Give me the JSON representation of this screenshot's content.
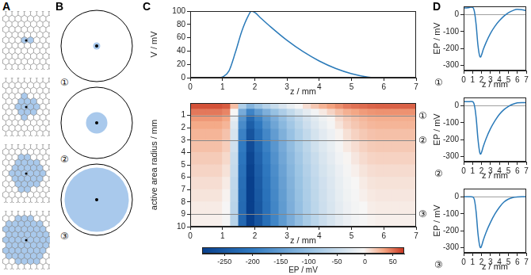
{
  "panels": [
    "A",
    "B",
    "C",
    "D"
  ],
  "chart_data": [
    {
      "type": "line",
      "x_label": "z / mm",
      "y_label": "V / mV",
      "color": "#2a7ab9",
      "x": [
        0,
        0.5,
        0.9,
        1.0,
        1.2,
        1.4,
        1.6,
        1.8,
        1.9,
        2.0,
        2.2,
        2.5,
        3.0,
        3.5,
        4.0,
        4.5,
        5.0,
        5.5,
        5.8,
        6.5,
        7.0
      ],
      "values": [
        0,
        0,
        0,
        1,
        10,
        38,
        70,
        93,
        100,
        98,
        89,
        76,
        56,
        39,
        25,
        14,
        6,
        1,
        0,
        0,
        0
      ],
      "xlim": [
        0,
        7
      ],
      "xticks": [
        0,
        1,
        2,
        3,
        4,
        5,
        6,
        7
      ],
      "ylim": [
        0,
        100
      ],
      "yticks": [
        0,
        20,
        40,
        60,
        80,
        100
      ]
    },
    {
      "type": "heatmap",
      "x_label": "z / mm",
      "y_label": "active area radius / mm",
      "x": [
        0.125,
        0.375,
        0.625,
        0.875,
        1.125,
        1.375,
        1.625,
        1.875,
        2.125,
        2.375,
        2.625,
        2.875,
        3.125,
        3.375,
        3.625,
        3.875,
        4.125,
        4.375,
        4.625,
        4.875,
        5.125,
        5.375,
        5.625,
        5.875,
        6.125,
        6.375,
        6.625,
        6.875
      ],
      "y": [
        0.25,
        0.75,
        1.25,
        1.75,
        2.5,
        3.5,
        4.5,
        5.5,
        6.5,
        7.5,
        8.5,
        9.5
      ],
      "cells": [
        [
          60,
          60,
          60,
          60,
          57,
          23,
          -73,
          -115,
          -90,
          -67,
          -49,
          -32,
          -16,
          -3,
          9,
          19,
          28,
          35,
          41,
          47,
          50,
          52,
          54,
          55,
          55,
          55,
          55,
          55
        ],
        [
          48,
          48,
          48,
          48,
          44,
          -2,
          -129,
          -185,
          -151,
          -122,
          -97,
          -75,
          -55,
          -37,
          -21,
          -7,
          4,
          13,
          22,
          29,
          33,
          37,
          39,
          40,
          40,
          40,
          40,
          40
        ],
        [
          38,
          38,
          38,
          38,
          33,
          -18,
          -161,
          -225,
          -187,
          -154,
          -126,
          -100,
          -77,
          -57,
          -39,
          -24,
          -11,
          -1,
          10,
          17,
          22,
          26,
          29,
          30,
          30,
          30,
          30,
          30
        ],
        [
          32,
          32,
          32,
          32,
          27,
          -27,
          -174,
          -241,
          -201,
          -166,
          -137,
          -110,
          -86,
          -64,
          -45,
          -29,
          -16,
          -5,
          6,
          14,
          19,
          23,
          26,
          27,
          27,
          27,
          27,
          27
        ],
        [
          27,
          27,
          27,
          27,
          21,
          -35,
          -188,
          -258,
          -216,
          -180,
          -149,
          -121,
          -96,
          -73,
          -54,
          -37,
          -23,
          -12,
          0,
          8,
          14,
          18,
          21,
          22,
          22,
          22,
          22,
          22
        ],
        [
          22,
          22,
          22,
          22,
          16,
          -41,
          -198,
          -270,
          -227,
          -189,
          -158,
          -129,
          -103,
          -80,
          -60,
          -42,
          -28,
          -17,
          -5,
          4,
          9,
          14,
          17,
          18,
          18,
          18,
          18,
          18
        ],
        [
          17,
          17,
          17,
          17,
          11,
          -48,
          -206,
          -279,
          -235,
          -197,
          -165,
          -135,
          -109,
          -86,
          -65,
          -48,
          -33,
          -21,
          -9,
          -1,
          5,
          10,
          13,
          14,
          14,
          14,
          14,
          14
        ],
        [
          13,
          13,
          13,
          13,
          7,
          -52,
          -212,
          -286,
          -242,
          -203,
          -171,
          -141,
          -114,
          -91,
          -70,
          -52,
          -37,
          -26,
          -14,
          -5,
          1,
          6,
          9,
          10,
          10,
          10,
          10,
          10
        ],
        [
          9,
          9,
          9,
          9,
          3,
          -57,
          -217,
          -291,
          -246,
          -208,
          -175,
          -145,
          -118,
          -94,
          -74,
          -56,
          -41,
          -29,
          -17,
          -8,
          -2,
          3,
          6,
          7,
          7,
          7,
          7,
          7
        ],
        [
          6,
          6,
          6,
          6,
          0,
          -60,
          -220,
          -295,
          -250,
          -211,
          -178,
          -148,
          -121,
          -97,
          -76,
          -58,
          -43,
          -31,
          -19,
          -10,
          -4,
          1,
          4,
          5,
          5,
          5,
          5,
          5
        ],
        [
          3,
          3,
          3,
          3,
          -3,
          -63,
          -223,
          -298,
          -253,
          -214,
          -181,
          -151,
          -123,
          -99,
          -78,
          -60,
          -45,
          -33,
          -21,
          -12,
          -6,
          -2,
          2,
          3,
          3,
          3,
          3,
          3
        ],
        [
          1,
          1,
          1,
          1,
          -5,
          -65,
          -226,
          -301,
          -256,
          -216,
          -183,
          -153,
          -126,
          -102,
          -80,
          -62,
          -47,
          -35,
          -23,
          -14,
          -8,
          -4,
          0,
          1,
          1,
          1,
          1,
          1
        ]
      ],
      "xlim": [
        0,
        7
      ],
      "xticks": [
        0,
        1,
        2,
        3,
        4,
        5,
        6,
        7
      ],
      "ylim": [
        0,
        10
      ],
      "yticks": [
        1,
        2,
        3,
        4,
        5,
        6,
        7,
        8,
        9,
        10
      ],
      "annotations": [
        {
          "y": 1,
          "label": "①"
        },
        {
          "y": 3,
          "label": "②"
        },
        {
          "y": 9,
          "label": "③"
        }
      ],
      "colorbar": {
        "range": [
          -290,
          70
        ],
        "ticks": [
          -250,
          -200,
          -150,
          -100,
          -50,
          0,
          50
        ],
        "label": "EP / mV"
      }
    },
    {
      "type": "line",
      "x_label": "z / mm",
      "y_label": "EP / mV",
      "color": "#2a7ab9",
      "annotations": [
        {
          "label": "①"
        }
      ],
      "x": [
        0,
        0.5,
        0.8,
        1.0,
        1.2,
        1.4,
        1.6,
        1.8,
        1.9,
        2.0,
        2.2,
        2.5,
        3.0,
        3.5,
        4.0,
        4.5,
        5.0,
        5.5,
        6.0,
        6.5,
        7.0
      ],
      "values": [
        40,
        42,
        45,
        44,
        20,
        -60,
        -180,
        -245,
        -250,
        -238,
        -205,
        -165,
        -110,
        -68,
        -35,
        -8,
        12,
        25,
        32,
        30,
        25
      ],
      "xlim": [
        0,
        7
      ],
      "xticks": [
        0,
        1,
        2,
        3,
        4,
        5,
        6,
        7
      ],
      "ylim": [
        -330,
        50
      ],
      "yticks": [
        -300,
        -200,
        -100,
        0
      ]
    },
    {
      "type": "line",
      "x_label": "z / mm",
      "y_label": "EP / mV",
      "color": "#2a7ab9",
      "annotations": [
        {
          "label": "②"
        }
      ],
      "x": [
        0,
        0.5,
        0.8,
        1.0,
        1.2,
        1.4,
        1.6,
        1.8,
        1.9,
        2.0,
        2.2,
        2.5,
        3.0,
        3.5,
        4.0,
        4.5,
        5.0,
        5.5,
        6.0,
        6.5,
        7.0
      ],
      "values": [
        25,
        25,
        26,
        25,
        5,
        -70,
        -195,
        -275,
        -285,
        -275,
        -240,
        -195,
        -135,
        -88,
        -50,
        -22,
        -3,
        10,
        18,
        20,
        20
      ],
      "xlim": [
        0,
        7
      ],
      "xticks": [
        0,
        1,
        2,
        3,
        4,
        5,
        6,
        7
      ],
      "ylim": [
        -330,
        50
      ],
      "yticks": [
        -300,
        -200,
        -100,
        0
      ]
    },
    {
      "type": "line",
      "x_label": "z / mm",
      "y_label": "EP / mV",
      "color": "#2a7ab9",
      "annotations": [
        {
          "label": "③"
        }
      ],
      "x": [
        0,
        0.5,
        0.8,
        1.0,
        1.2,
        1.4,
        1.6,
        1.8,
        1.9,
        2.0,
        2.2,
        2.5,
        3.0,
        3.5,
        4.0,
        4.5,
        5.0,
        5.5,
        6.0,
        6.5,
        7.0
      ],
      "values": [
        2,
        2,
        2,
        1,
        -15,
        -90,
        -215,
        -290,
        -300,
        -290,
        -255,
        -210,
        -150,
        -100,
        -60,
        -30,
        -12,
        -3,
        1,
        2,
        2
      ],
      "xlim": [
        0,
        7
      ],
      "xticks": [
        0,
        1,
        2,
        3,
        4,
        5,
        6,
        7
      ],
      "ylim": [
        -330,
        50
      ],
      "yticks": [
        -300,
        -200,
        -100,
        0
      ]
    }
  ]
}
